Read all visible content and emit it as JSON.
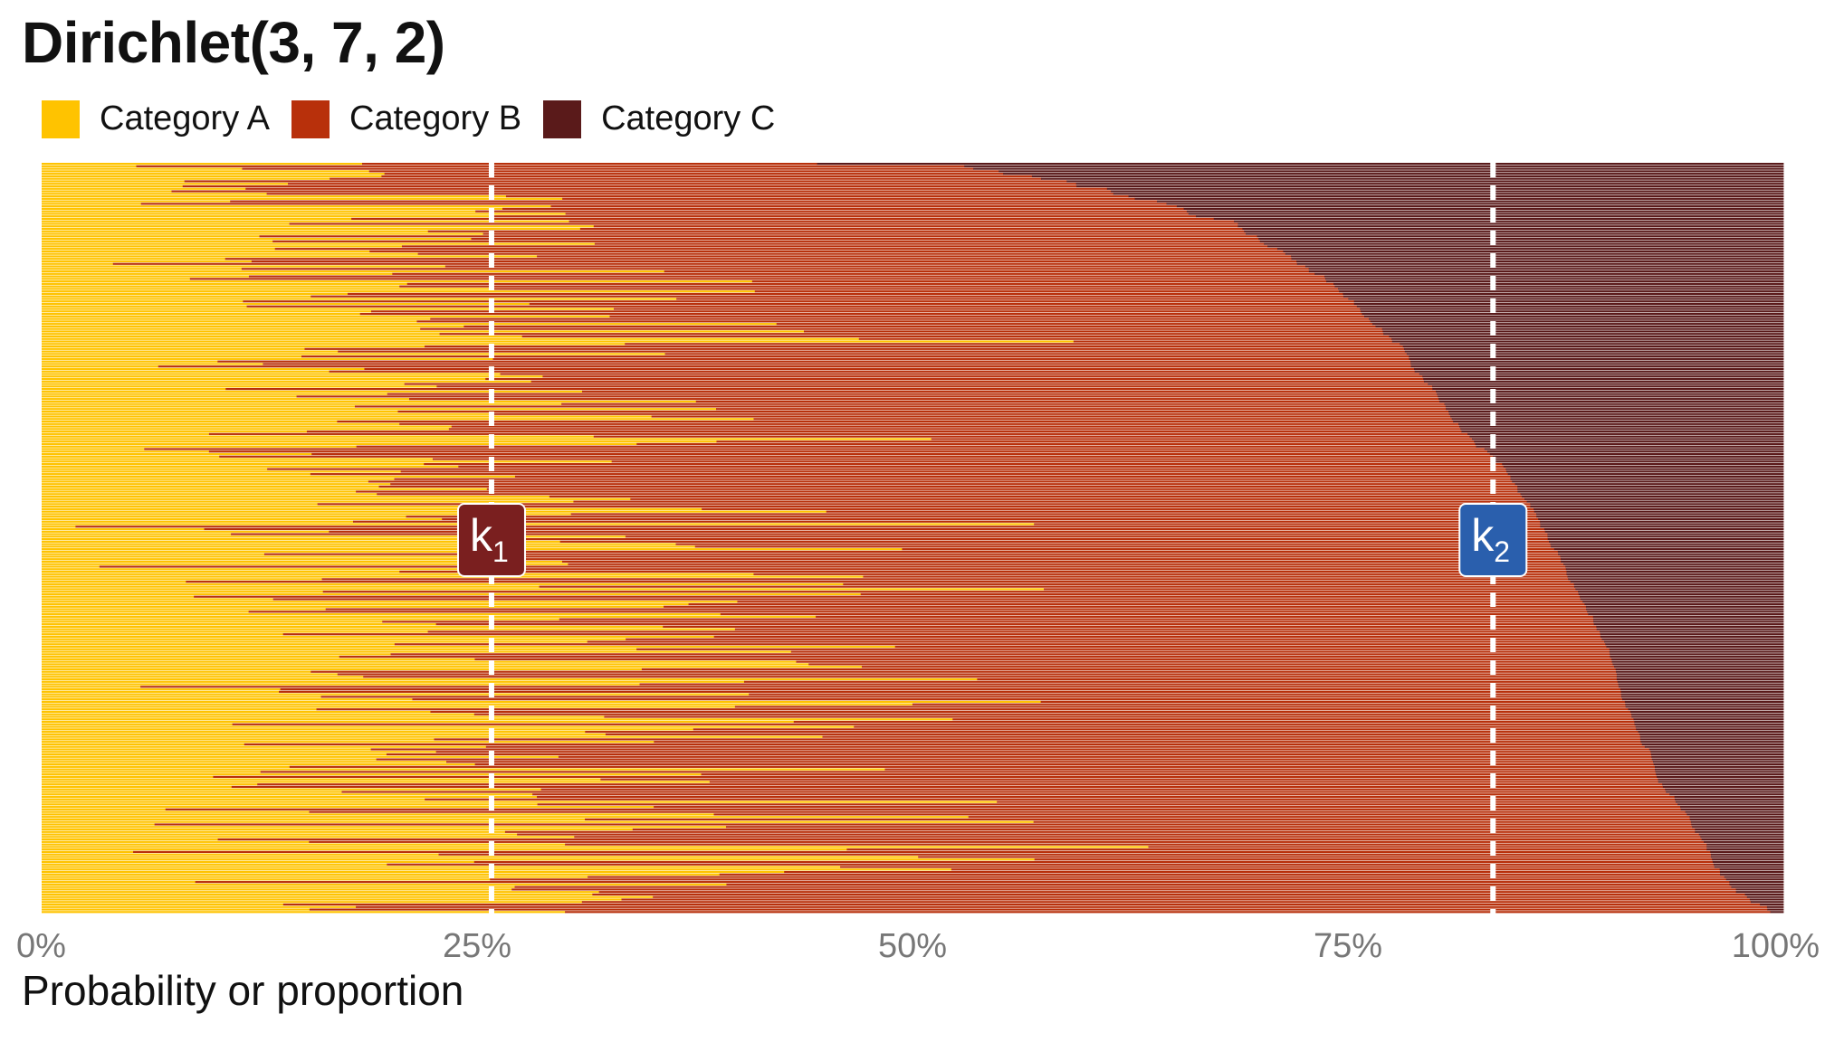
{
  "chart_data": {
    "type": "bar",
    "orientation": "horizontal",
    "stacked": true,
    "title": "Dirichlet(3, 7, 2)",
    "xlabel": "Probability or proportion",
    "ylabel": "",
    "xlim": [
      0,
      1
    ],
    "x_ticks": [
      "0%",
      "25%",
      "50%",
      "75%",
      "100%"
    ],
    "x_tick_values": [
      0,
      0.25,
      0.5,
      0.75,
      1.0
    ],
    "legend_position": "top-left",
    "grid": false,
    "series": [
      {
        "name": "Category A",
        "color": "#FFC300"
      },
      {
        "name": "Category B",
        "color": "#B8300B"
      },
      {
        "name": "Category C",
        "color": "#5A1A1A"
      }
    ],
    "n_samples": 300,
    "alpha": [
      3,
      7,
      2
    ],
    "markers": [
      {
        "label": "k",
        "subscript": "1",
        "value": 0.2583,
        "color": "#7A1F1F"
      },
      {
        "label": "k",
        "subscript": "2",
        "value": 0.8333,
        "color": "#2A5FAD"
      }
    ]
  }
}
